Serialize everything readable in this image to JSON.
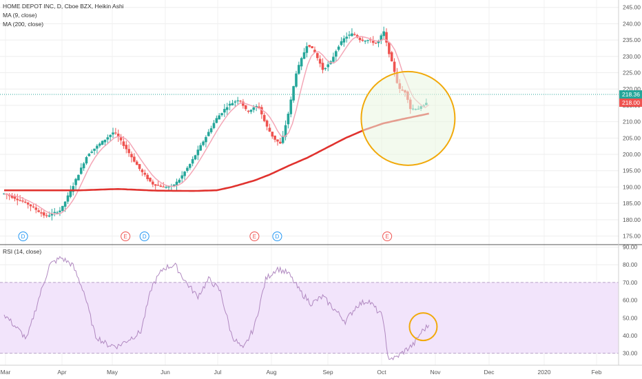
{
  "chart_data": {
    "type": "candlestick",
    "style": "Heikin Ashi",
    "title": "HOME DEPOT INC, D, Cboe BZX, Heikin Ashi",
    "indicator_labels": [
      "MA (9, close)",
      "MA (200, close)"
    ],
    "price_axis": {
      "ticks": [
        "245.00",
        "240.00",
        "235.00",
        "230.00",
        "225.00",
        "220.00",
        "215.00",
        "210.00",
        "205.00",
        "200.00",
        "195.00",
        "190.00",
        "185.00",
        "180.00",
        "175.00"
      ],
      "range": [
        173,
        246
      ],
      "last_price": "218.36",
      "ma9_last": "218.00"
    },
    "x_axis": {
      "ticks": [
        "Mar",
        "Apr",
        "May",
        "Jun",
        "Jul",
        "Aug",
        "Sep",
        "Oct",
        "Nov",
        "Dec",
        "2020",
        "Feb"
      ]
    },
    "price_path": [
      [
        0,
        188
      ],
      [
        6,
        185
      ],
      [
        11,
        181
      ],
      [
        15,
        183
      ],
      [
        18,
        190
      ],
      [
        22,
        200
      ],
      [
        26,
        204
      ],
      [
        29,
        207
      ],
      [
        32,
        202
      ],
      [
        36,
        195
      ],
      [
        39,
        191
      ],
      [
        42,
        190
      ],
      [
        44,
        190
      ],
      [
        46,
        192
      ],
      [
        49,
        197
      ],
      [
        53,
        205
      ],
      [
        56,
        211
      ],
      [
        59,
        215
      ],
      [
        62,
        217
      ],
      [
        64,
        213
      ],
      [
        67,
        215
      ],
      [
        69,
        209
      ],
      [
        71,
        205
      ],
      [
        73,
        203
      ],
      [
        75,
        213
      ],
      [
        77,
        225
      ],
      [
        80,
        234
      ],
      [
        82,
        231
      ],
      [
        84,
        226
      ],
      [
        86,
        228
      ],
      [
        88,
        233
      ],
      [
        90,
        236
      ],
      [
        92,
        237
      ],
      [
        94,
        235
      ],
      [
        96,
        235
      ],
      [
        98,
        234
      ],
      [
        99,
        235
      ],
      [
        100,
        238
      ],
      [
        101,
        233
      ],
      [
        103,
        225
      ],
      [
        104,
        220
      ],
      [
        106,
        219
      ],
      [
        107,
        214
      ],
      [
        109,
        214
      ],
      [
        111,
        215
      ],
      [
        112,
        218.4
      ]
    ],
    "ma200_path": [
      [
        0,
        189
      ],
      [
        10,
        189
      ],
      [
        20,
        189
      ],
      [
        30,
        189.4
      ],
      [
        40,
        188.9
      ],
      [
        50,
        188.8
      ],
      [
        56,
        189
      ],
      [
        60,
        190
      ],
      [
        66,
        192
      ],
      [
        70,
        193.8
      ],
      [
        75,
        196.5
      ],
      [
        80,
        199
      ],
      [
        85,
        202
      ],
      [
        90,
        205
      ],
      [
        95,
        207.5
      ],
      [
        100,
        209.5
      ],
      [
        105,
        210.8
      ],
      [
        110,
        212
      ],
      [
        112,
        212.5
      ]
    ],
    "event_markers": [
      {
        "x": 5,
        "label": "D"
      },
      {
        "x": 32,
        "label": "E"
      },
      {
        "x": 37,
        "label": "D"
      },
      {
        "x": 66,
        "label": "E"
      },
      {
        "x": 72,
        "label": "D"
      },
      {
        "x": 101,
        "label": "E"
      }
    ],
    "rsi": {
      "label": "RSI (14, close)",
      "ticks": [
        "90.00",
        "80.00",
        "70.00",
        "60.00",
        "50.00",
        "40.00",
        "30.00"
      ],
      "range": [
        24,
        91
      ],
      "band": [
        30,
        70
      ],
      "path": [
        [
          0,
          52
        ],
        [
          3,
          45
        ],
        [
          6,
          38
        ],
        [
          9,
          60
        ],
        [
          12,
          80
        ],
        [
          15,
          84
        ],
        [
          18,
          80
        ],
        [
          21,
          65
        ],
        [
          24,
          40
        ],
        [
          27,
          35
        ],
        [
          30,
          34
        ],
        [
          33,
          38
        ],
        [
          36,
          42
        ],
        [
          39,
          68
        ],
        [
          42,
          78
        ],
        [
          45,
          80
        ],
        [
          48,
          70
        ],
        [
          51,
          62
        ],
        [
          54,
          72
        ],
        [
          57,
          65
        ],
        [
          60,
          40
        ],
        [
          63,
          32
        ],
        [
          66,
          45
        ],
        [
          69,
          72
        ],
        [
          72,
          78
        ],
        [
          75,
          75
        ],
        [
          78,
          65
        ],
        [
          81,
          58
        ],
        [
          84,
          62
        ],
        [
          87,
          55
        ],
        [
          90,
          48
        ],
        [
          93,
          57
        ],
        [
          96,
          60
        ],
        [
          98,
          55
        ],
        [
          100,
          50
        ],
        [
          101,
          28
        ],
        [
          103,
          27
        ],
        [
          106,
          32
        ],
        [
          108,
          35
        ],
        [
          110,
          42
        ],
        [
          112,
          46
        ]
      ]
    },
    "annotation": "circle highlight"
  }
}
